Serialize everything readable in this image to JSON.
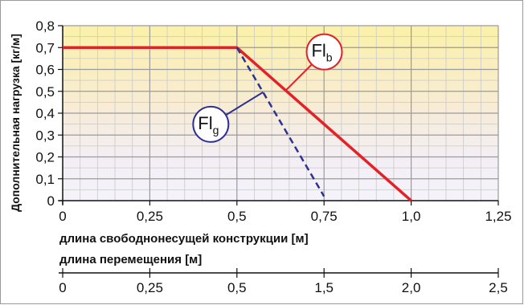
{
  "chart_data": {
    "type": "line",
    "ylabel": "Дополнительная нагрузка  [кг/м]",
    "xlabel": "длина свободнонесущей конструкции [м]",
    "xlabel2": "длина перемещения [м]",
    "ylim": [
      0,
      0.8
    ],
    "xlim": [
      0,
      1.25
    ],
    "y_ticks": [
      "0",
      "0,1",
      "0,2",
      "0,3",
      "0,4",
      "0,5",
      "0,6",
      "0,7",
      "0,8"
    ],
    "x_ticks": [
      "0",
      "0,25",
      "0,5",
      "0,75",
      "1,0",
      "1,25"
    ],
    "x2_ticks": [
      "0",
      "0,25",
      "0,5",
      "1,5",
      "2,0",
      "2,5"
    ],
    "grid": true,
    "series": [
      {
        "name": "Flb",
        "name_main": "Fl",
        "name_sub": "b",
        "style": "solid",
        "color": "#e32228",
        "x": [
          0,
          0.5,
          1.0
        ],
        "y": [
          0.7,
          0.7,
          0
        ]
      },
      {
        "name": "Flg",
        "name_main": "Fl",
        "name_sub": "g",
        "style": "dashed",
        "color": "#2e3192",
        "x": [
          0.5,
          0.75
        ],
        "y": [
          0.7,
          0.02
        ]
      }
    ]
  }
}
